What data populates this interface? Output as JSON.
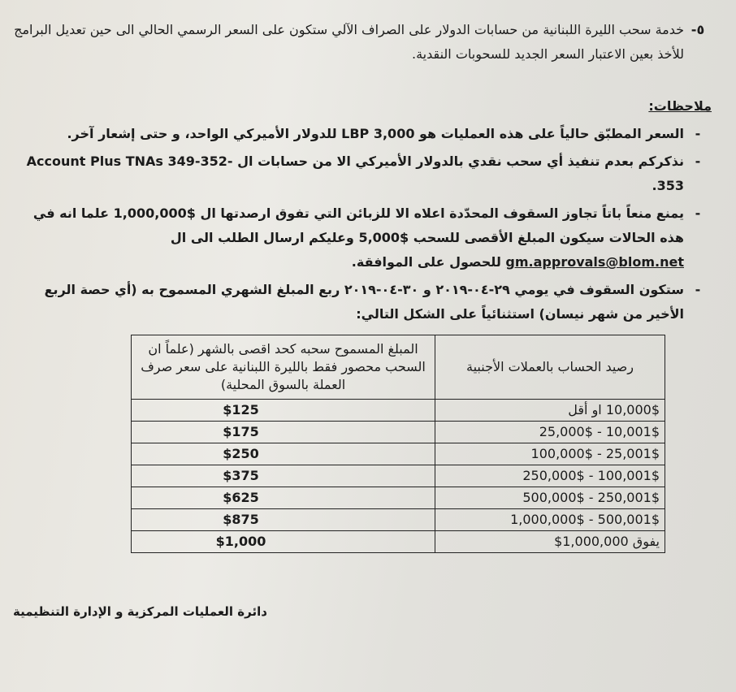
{
  "item5": {
    "number": "٥-",
    "line1": "خدمة سحب الليرة اللبنانية من حسابات الدولار على الصراف الآلي ستكون على السعر الرسمي الحالي الى حين",
    "line2": "تعديل البرامج للأخذ بعين الاعتبار السعر الجديد للسحوبات النقدية."
  },
  "notes": {
    "heading": "ملاحظات:",
    "bullet_marker": "-",
    "note1": "السعر المطبّق حالياً على هذه العمليات هو  LBP 3,000  للدولار الأميركي الواحد، و حتى إشعار آخر.",
    "note2": "نذكركم بعدم تنفيذ أي سحب نقدي بالدولار الأميركي الا من حسابات ال Account Plus TNAs 349-352-353.",
    "note3_line1": "يمنع منعاً باتاً تجاوز السقوف المحدّدة اعلاه الا للزبائن التي تفوق ارصدتها ال $1,000,000 علما انه في هذه",
    "note3_line2": "الحالات سيكون المبلغ الأقصى للسحب $5,000 وعليكم ارسال الطلب الى ال",
    "note3_email": "gm.approvals@blom.net",
    "note3_line3": "للحصول على الموافقة.",
    "note4_line1": "ستكون السقوف في يومي ٢٩-٠٤-٢٠١٩ و ٣٠-٠٤-٢٠١٩ ربع المبلغ الشهري المسموح به (أي حصة الربع",
    "note4_line2": "الأخير من شهر نيسان) استثنائياً على الشكل التالي:"
  },
  "table": {
    "headers": [
      "رصيد الحساب بالعملات الأجنبية",
      "المبلغ المسموح سحبه كحد اقصى بالشهر (علماً ان السحب محصور فقط بالليرة اللبنانية على سعر صرف العملة بالسوق المحلية)"
    ],
    "rows": [
      [
        "10,000$ او أقل",
        "$125"
      ],
      [
        "10,001$ - 25,000$",
        "$175"
      ],
      [
        "25,001$ - 100,000$",
        "$250"
      ],
      [
        "100,001$ - 250,000$",
        "$375"
      ],
      [
        "250,001$ - 500,000$",
        "$625"
      ],
      [
        "500,001$ - 1,000,000$",
        "$875"
      ],
      [
        "يفوق 1,000,000$",
        "$1,000"
      ]
    ]
  },
  "footer": "دائرة العمليات المركزية و الإدارة التنظيمية"
}
